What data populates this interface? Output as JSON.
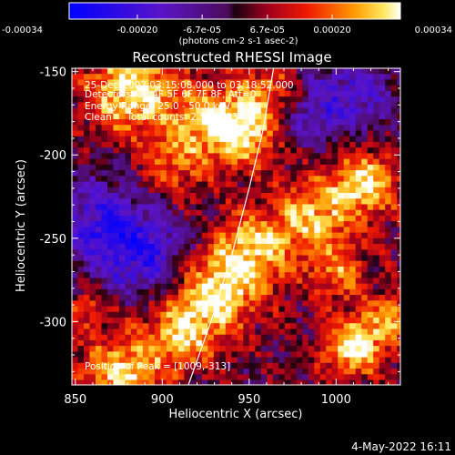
{
  "chart_data": {
    "type": "heatmap",
    "title": "Reconstructed RHESSI Image",
    "xlabel": "Heliocentric X (arcsec)",
    "ylabel": "Heliocentric Y (arcsec)",
    "xlim": [
      848,
      1037
    ],
    "ylim": [
      -338,
      -148
    ],
    "x_ticks": [
      850,
      900,
      950,
      1000
    ],
    "x_tick_labels": [
      "850",
      "900",
      "950",
      "1000"
    ],
    "y_ticks": [
      -300,
      -250,
      -200,
      -150
    ],
    "y_tick_labels": [
      "-300",
      "-250",
      "-200",
      "-150"
    ],
    "colorbar": {
      "min": -0.00034,
      "max": 0.00034,
      "ticks": [
        -0.00034,
        -0.0002,
        -6.7e-05,
        6.7e-05,
        0.0002,
        0.00034
      ],
      "tick_labels": [
        "-0.00034",
        "-0.00020",
        "-6.7e-05",
        "6.7e-05",
        "0.00020",
        "0.00034"
      ],
      "unit_label": "(photons cm-2 s-1 asec-2)"
    },
    "info_lines": [
      "25-Dec-2002 03:15:08.000 to 03:18:52.000",
      "Detectors: 3F 4F 5F 6F 7F 8F, Att=0",
      "Energy Range: 25.0 - 50.0 keV",
      "Clean     Total counts: 2.56E+03"
    ],
    "peak_label": "Position of Peak = [1009,-313]",
    "peak_position": [
      1009,
      -313
    ],
    "limb_curve": {
      "x": [
        915,
        928,
        940,
        950,
        958,
        964
      ],
      "y": [
        -338,
        -300,
        -260,
        -220,
        -185,
        -148
      ]
    },
    "bright_regions": [
      {
        "x": 880,
        "y": -160,
        "sigma": 18,
        "amp": 0.00032
      },
      {
        "x": 925,
        "y": -175,
        "sigma": 16,
        "amp": 0.00022
      },
      {
        "x": 945,
        "y": -185,
        "sigma": 14,
        "amp": 0.00026
      },
      {
        "x": 905,
        "y": -205,
        "sigma": 14,
        "amp": 0.00016
      },
      {
        "x": 960,
        "y": -160,
        "sigma": 12,
        "amp": 0.00016
      },
      {
        "x": 1015,
        "y": -215,
        "sigma": 14,
        "amp": 0.00028
      },
      {
        "x": 985,
        "y": -235,
        "sigma": 16,
        "amp": 0.00024
      },
      {
        "x": 950,
        "y": -255,
        "sigma": 16,
        "amp": 0.00026
      },
      {
        "x": 930,
        "y": -280,
        "sigma": 16,
        "amp": 0.00028
      },
      {
        "x": 910,
        "y": -305,
        "sigma": 15,
        "amp": 0.00026
      },
      {
        "x": 875,
        "y": -330,
        "sigma": 16,
        "amp": 0.00028
      },
      {
        "x": 1009,
        "y": -313,
        "sigma": 12,
        "amp": 0.00034
      },
      {
        "x": 1030,
        "y": -295,
        "sigma": 10,
        "amp": 0.0002
      },
      {
        "x": 1000,
        "y": -270,
        "sigma": 12,
        "amp": 0.00018
      },
      {
        "x": 855,
        "y": -290,
        "sigma": 10,
        "amp": 0.00014
      }
    ],
    "dark_regions": [
      {
        "x": 862,
        "y": -240,
        "sigma": 20,
        "amp": -0.00022
      },
      {
        "x": 890,
        "y": -260,
        "sigma": 18,
        "amp": -0.0002
      },
      {
        "x": 1010,
        "y": -160,
        "sigma": 18,
        "amp": -0.00016
      },
      {
        "x": 985,
        "y": -175,
        "sigma": 14,
        "amp": -0.00014
      }
    ]
  },
  "footer": {
    "date": "4-May-2022 16:11"
  }
}
